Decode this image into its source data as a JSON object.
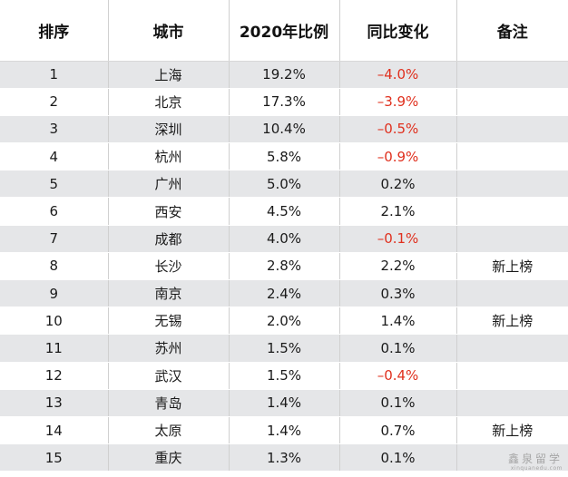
{
  "headers": [
    "排序",
    "城市",
    "2020年比例",
    "同比变化",
    "备注"
  ],
  "rows": [
    {
      "rank": "1",
      "city": "上海",
      "ratio": "19.2%",
      "change": "–4.0%",
      "note": "",
      "negative": true
    },
    {
      "rank": "2",
      "city": "北京",
      "ratio": "17.3%",
      "change": "–3.9%",
      "note": "",
      "negative": true
    },
    {
      "rank": "3",
      "city": "深圳",
      "ratio": "10.4%",
      "change": "–0.5%",
      "note": "",
      "negative": true
    },
    {
      "rank": "4",
      "city": "杭州",
      "ratio": "5.8%",
      "change": "–0.9%",
      "note": "",
      "negative": true
    },
    {
      "rank": "5",
      "city": "广州",
      "ratio": "5.0%",
      "change": "0.2%",
      "note": "",
      "negative": false
    },
    {
      "rank": "6",
      "city": "西安",
      "ratio": "4.5%",
      "change": "2.1%",
      "note": "",
      "negative": false
    },
    {
      "rank": "7",
      "city": "成都",
      "ratio": "4.0%",
      "change": "–0.1%",
      "note": "",
      "negative": true
    },
    {
      "rank": "8",
      "city": "长沙",
      "ratio": "2.8%",
      "change": "2.2%",
      "note": "新上榜",
      "negative": false
    },
    {
      "rank": "9",
      "city": "南京",
      "ratio": "2.4%",
      "change": "0.3%",
      "note": "",
      "negative": false
    },
    {
      "rank": "10",
      "city": "无锡",
      "ratio": "2.0%",
      "change": "1.4%",
      "note": "新上榜",
      "negative": false
    },
    {
      "rank": "11",
      "city": "苏州",
      "ratio": "1.5%",
      "change": "0.1%",
      "note": "",
      "negative": false
    },
    {
      "rank": "12",
      "city": "武汉",
      "ratio": "1.5%",
      "change": "–0.4%",
      "note": "",
      "negative": true
    },
    {
      "rank": "13",
      "city": "青岛",
      "ratio": "1.4%",
      "change": "0.1%",
      "note": "",
      "negative": false
    },
    {
      "rank": "14",
      "city": "太原",
      "ratio": "1.4%",
      "change": "0.7%",
      "note": "新上榜",
      "negative": false
    },
    {
      "rank": "15",
      "city": "重庆",
      "ratio": "1.3%",
      "change": "0.1%",
      "note": "",
      "negative": false
    }
  ],
  "watermark": {
    "cn": "鑫泉留学",
    "en": "xinquanedu.com"
  },
  "colors": {
    "negative": "#e0301e",
    "stripe": "#e5e6e8",
    "text": "#1a1a1a"
  }
}
